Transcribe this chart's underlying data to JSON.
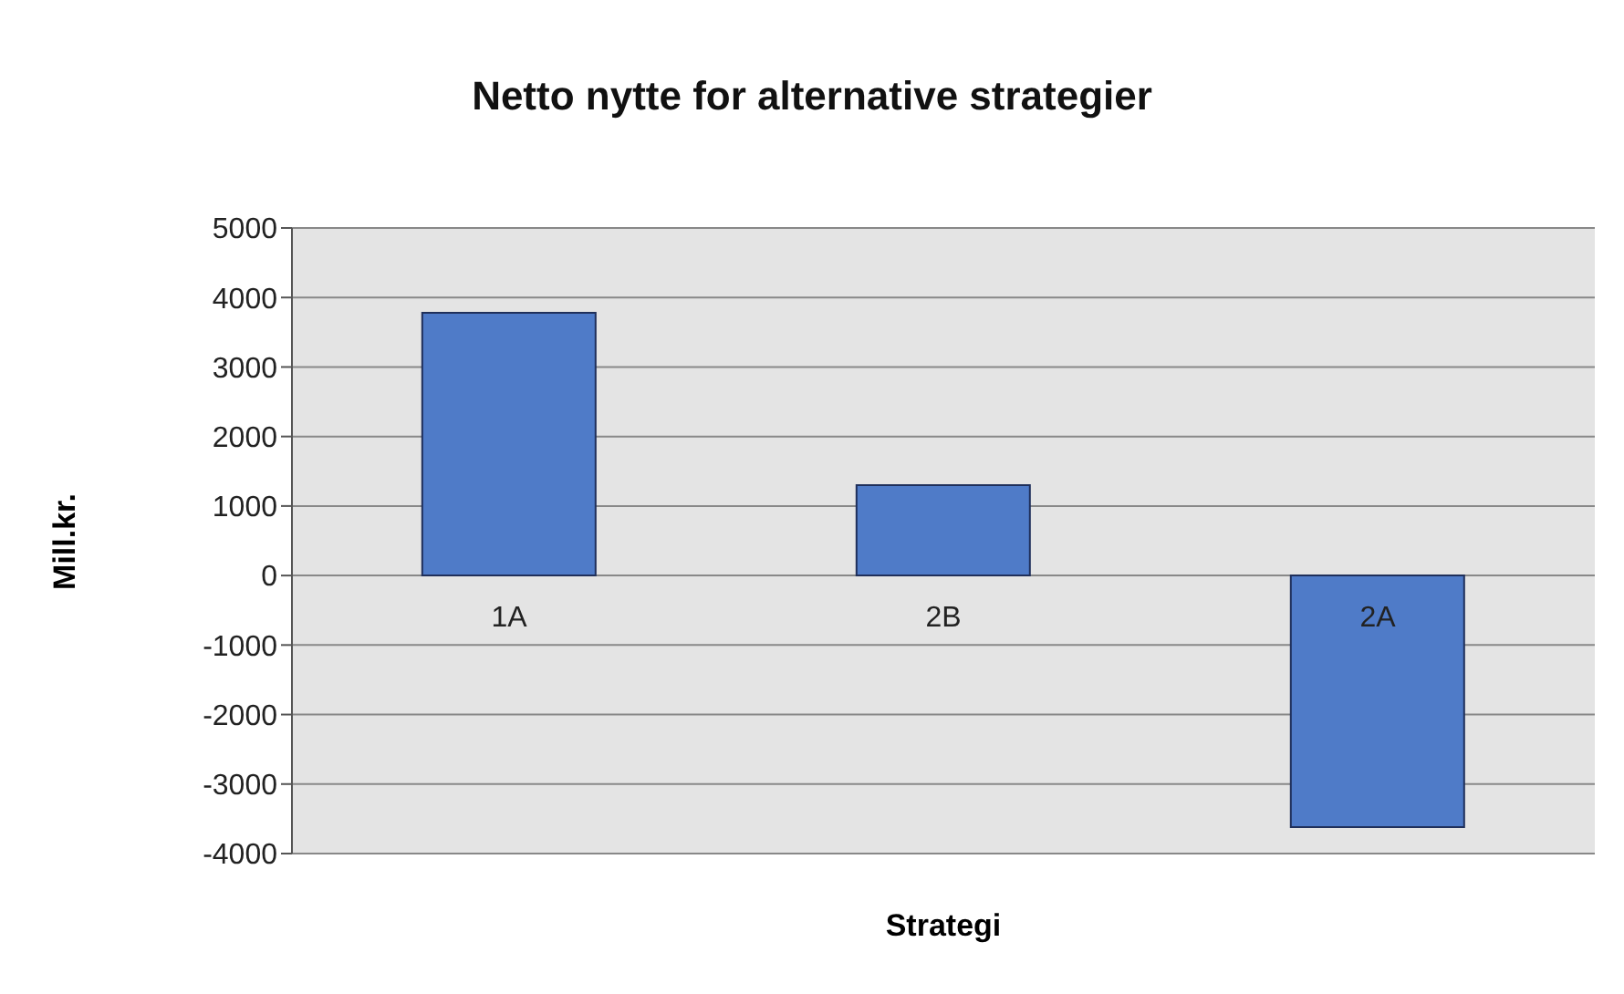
{
  "chart_data": {
    "type": "bar",
    "title": "Netto nytte for alternative strategier",
    "xlabel": "Strategi",
    "ylabel": "Mill.kr.",
    "categories": [
      "1A",
      "2B",
      "2A"
    ],
    "values": [
      3780,
      1300,
      -3620
    ],
    "color": "#4f7bc8",
    "ylim": [
      -4000,
      5000
    ],
    "yticks": [
      -4000,
      -3000,
      -2000,
      -1000,
      0,
      1000,
      2000,
      3000,
      4000,
      5000
    ],
    "grid": "y"
  }
}
